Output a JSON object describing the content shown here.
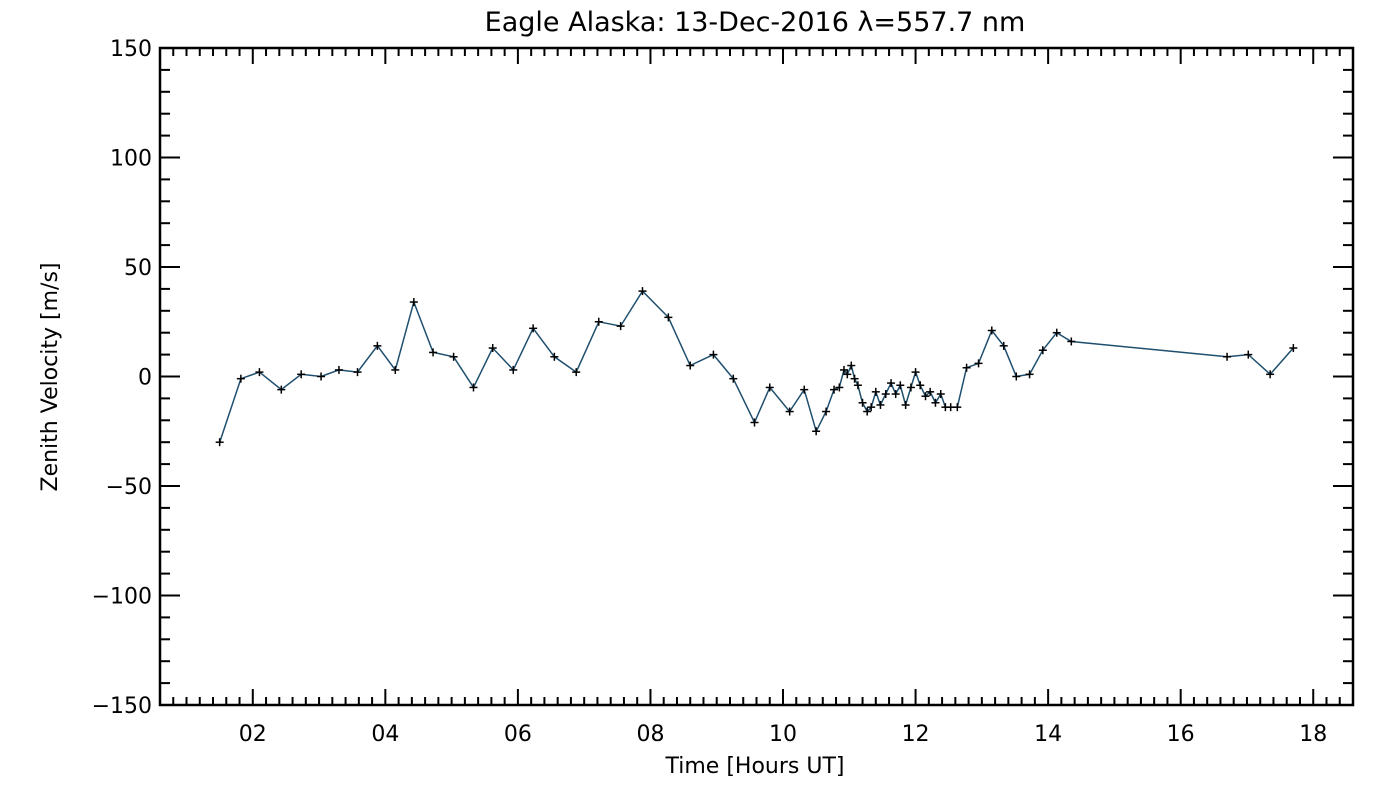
{
  "chart_data": {
    "type": "line",
    "title": "Eagle Alaska: 13-Dec-2016 λ=557.7 nm",
    "xlabel": "Time [Hours UT]",
    "ylabel": "Zenith Velocity [m/s]",
    "xlim": [
      0.6,
      18.6
    ],
    "ylim": [
      -150,
      150
    ],
    "x_ticks": [
      2,
      4,
      6,
      8,
      10,
      12,
      14,
      16,
      18
    ],
    "x_tick_labels": [
      "02",
      "04",
      "06",
      "08",
      "10",
      "12",
      "14",
      "16",
      "18"
    ],
    "y_ticks": [
      150,
      100,
      50,
      0,
      -50,
      -100,
      -150
    ],
    "y_tick_labels": [
      "150",
      "100",
      "50",
      "0",
      "−50",
      "−100",
      "−150"
    ],
    "grid": false,
    "colors": {
      "line": "#1f4f6e",
      "marker": "#000000",
      "axes": "#000000"
    },
    "series": [
      {
        "x": [
          1.5,
          1.82,
          2.1,
          2.43,
          2.73,
          3.03,
          3.3,
          3.58,
          3.88,
          4.15,
          4.43,
          4.72,
          5.03,
          5.33,
          5.62,
          5.93,
          6.23,
          6.55,
          6.88,
          7.22,
          7.55,
          7.88,
          8.27,
          8.6,
          8.95,
          9.25,
          9.57,
          9.8,
          10.1,
          10.32,
          10.5,
          10.65,
          10.77,
          10.85,
          10.92,
          10.97,
          11.03,
          11.08,
          11.13,
          11.2,
          11.27,
          11.33,
          11.4,
          11.47,
          11.55,
          11.63,
          11.7,
          11.77,
          11.85,
          11.93,
          12.0,
          12.07,
          12.15,
          12.22,
          12.3,
          12.38,
          12.45,
          12.53,
          12.63,
          12.77,
          12.95,
          13.15,
          13.33,
          13.52,
          13.72,
          13.92,
          14.13,
          14.35,
          16.7,
          17.02,
          17.35,
          17.7
        ],
        "y": [
          -30,
          -1,
          2,
          -6,
          1,
          0,
          3,
          2,
          14,
          3,
          34,
          11,
          9,
          -5,
          13,
          3,
          22,
          9,
          2,
          25,
          23,
          39,
          27,
          5,
          10,
          -1,
          -21,
          -5,
          -16,
          -6,
          -25,
          -16,
          -6,
          -5,
          3,
          1,
          5,
          -1,
          -4,
          -12,
          -16,
          -14,
          -7,
          -13,
          -8,
          -3,
          -8,
          -4,
          -13,
          -5,
          2,
          -4,
          -9,
          -7,
          -12,
          -8,
          -14,
          -14,
          -14,
          4,
          6,
          21,
          14,
          0,
          1,
          12,
          20,
          16,
          9,
          10,
          1,
          13
        ]
      }
    ]
  }
}
